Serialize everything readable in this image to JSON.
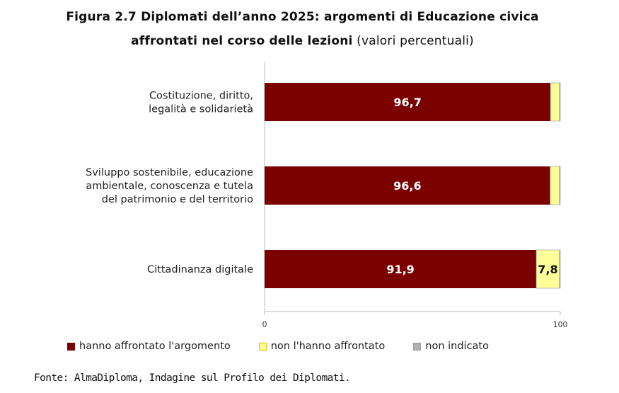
{
  "title": {
    "line1": "Figura 2.7  Diplomati dell’anno 2025: argomenti di Educazione civica",
    "line2_bold": "affrontati nel corso delle lezioni",
    "line2_normal": "(valori percentuali)"
  },
  "chart_data": {
    "type": "bar",
    "orientation": "horizontal",
    "stacked": true,
    "categories": [
      [
        "Costituzione, diritto,",
        "legalità e solidarietà"
      ],
      [
        "Sviluppo sostenibile, educazione",
        "ambientale, conoscenza e tutela",
        "del patrimonio e del territorio"
      ],
      [
        "Cittadinanza digitale"
      ]
    ],
    "series": [
      {
        "name": "hanno affrontato l'argomento",
        "color": "#7b0000",
        "values": [
          96.7,
          96.6,
          91.9
        ],
        "labels": [
          "96,7",
          "96,6",
          "91,9"
        ]
      },
      {
        "name": "non l'hanno affrontato",
        "color": "#ffff99",
        "values": [
          3.0,
          3.1,
          7.8
        ],
        "labels": [
          "",
          "",
          "7,8"
        ]
      },
      {
        "name": "non indicato",
        "color": "#b0b0b0",
        "values": [
          0.3,
          0.3,
          0.3
        ],
        "labels": [
          "",
          "",
          ""
        ]
      }
    ],
    "xlim": [
      0,
      100
    ],
    "xticks": [
      "0",
      "100"
    ],
    "grid": false,
    "legend": "bottom"
  },
  "source": "Fonte: AlmaDiploma, Indagine sul Profilo dei Diplomati."
}
